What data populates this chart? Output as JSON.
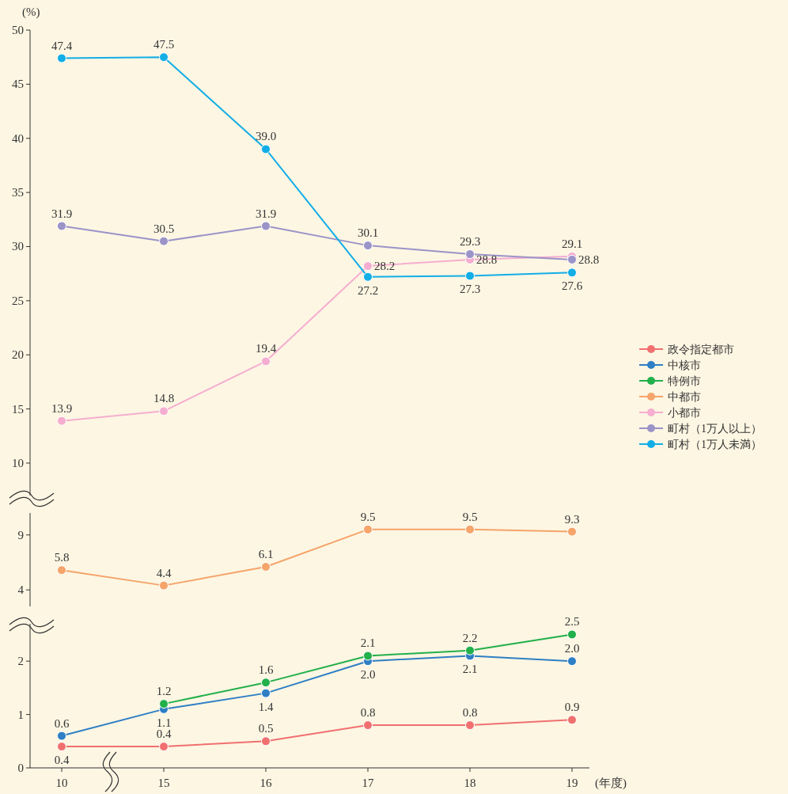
{
  "chart_data": [
    {
      "type": "line",
      "ylabel": "(%)",
      "categories": [
        "10",
        "15",
        "16",
        "17",
        "18",
        "19"
      ],
      "ylim": [
        7,
        50
      ],
      "yticks": [
        10,
        15,
        20,
        25,
        30,
        35,
        40,
        45,
        50
      ],
      "tick_labels": "y",
      "legend": "right",
      "marker": "circle",
      "series": [
        {
          "name": "小都市",
          "color": "#f5aed0",
          "values": [
            13.9,
            14.8,
            19.4,
            28.2,
            28.8,
            29.1
          ],
          "value_labels": [
            "13.9",
            "14.8",
            "19.4",
            "28.2",
            "28.8",
            "29.1"
          ]
        },
        {
          "name": "町村（1万人以上）",
          "color": "#9b94c8",
          "values": [
            31.9,
            30.5,
            31.9,
            30.1,
            29.3,
            28.8
          ],
          "value_labels": [
            "31.9",
            "30.5",
            "31.9",
            "30.1",
            "29.3",
            "28.8"
          ]
        },
        {
          "name": "町村（1万人未満）",
          "color": "#13aee6",
          "values": [
            47.4,
            47.5,
            39.0,
            27.2,
            27.3,
            27.6
          ],
          "value_labels": [
            "47.4",
            "47.5",
            "39.0",
            "27.2",
            "27.3",
            "27.6"
          ]
        }
      ]
    },
    {
      "type": "line",
      "categories": [
        "10",
        "15",
        "16",
        "17",
        "18",
        "19"
      ],
      "ylim": [
        2.5,
        11
      ],
      "yticks": [
        4,
        9
      ],
      "tick_labels": "y",
      "legend": "right",
      "marker": "circle",
      "series": [
        {
          "name": "中都市",
          "color": "#f5a46a",
          "values": [
            5.8,
            4.4,
            6.1,
            9.5,
            9.5,
            9.3
          ],
          "value_labels": [
            "5.8",
            "4.4",
            "6.1",
            "9.5",
            "9.5",
            "9.3"
          ]
        }
      ]
    },
    {
      "type": "line",
      "xlabel": "(年度)",
      "categories": [
        "10",
        "15",
        "16",
        "17",
        "18",
        "19"
      ],
      "ylim": [
        0,
        2.7
      ],
      "yticks": [
        0,
        1,
        2
      ],
      "legend": "right",
      "marker": "circle",
      "series": [
        {
          "name": "政令指定都市",
          "color": "#f07070",
          "values": [
            0.4,
            0.4,
            0.5,
            0.8,
            0.8,
            0.9
          ],
          "value_labels": [
            "0.4",
            "0.4",
            "0.5",
            "0.8",
            "0.8",
            "0.9"
          ]
        },
        {
          "name": "中核市",
          "color": "#2e7fc4",
          "values": [
            0.6,
            1.1,
            1.4,
            2.0,
            2.1,
            2.0
          ],
          "value_labels": [
            "0.6",
            "1.1",
            "1.4",
            "2.0",
            "2.1",
            "2.0"
          ]
        },
        {
          "name": "特例市",
          "color": "#22b04a",
          "values": [
            null,
            1.2,
            1.6,
            2.1,
            2.2,
            2.5
          ],
          "value_labels": [
            null,
            "1.2",
            "1.6",
            "2.1",
            "2.2",
            "2.5"
          ]
        }
      ]
    }
  ]
}
